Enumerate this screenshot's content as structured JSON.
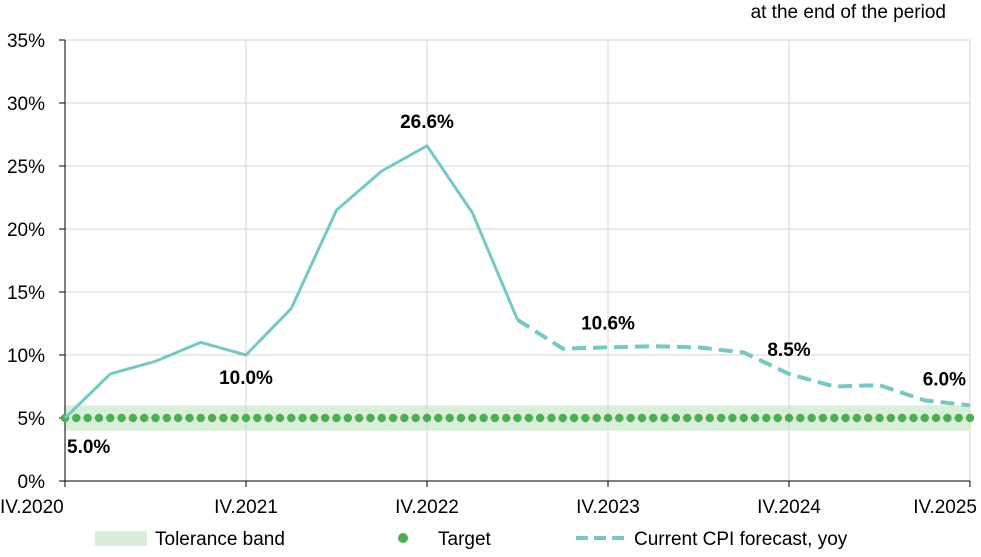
{
  "header_note": "at the end of the period",
  "legend": {
    "tolerance_band": "Tolerance band",
    "target": "Target",
    "forecast": "Current CPI forecast, yoy"
  },
  "colors": {
    "line": "#74c9c6",
    "target_dots": "#4caf50",
    "band": "#d9efd9",
    "grid": "#d4d4d4",
    "axis": "#000000"
  },
  "chart_data": {
    "type": "line",
    "y_axis": {
      "ylim": [
        0,
        35
      ],
      "ticks": [
        0,
        5,
        10,
        15,
        20,
        25,
        30,
        35
      ],
      "tick_labels": [
        "0%",
        "5%",
        "10%",
        "15%",
        "20%",
        "25%",
        "30%",
        "35%"
      ]
    },
    "x_axis": {
      "range": [
        "IV.2020",
        "IV.2025"
      ],
      "ticks": [
        0,
        4,
        8,
        12,
        16,
        20
      ],
      "tick_labels": [
        "IV.2020",
        "IV.2021",
        "IV.2022",
        "IV.2023",
        "IV.2024",
        "IV.2025"
      ]
    },
    "tolerance_band": {
      "low": 4,
      "high": 6
    },
    "target": {
      "value": 5,
      "points_per_quarter": 4
    },
    "series": [
      {
        "name": "Current CPI forecast, yoy",
        "style": "solid",
        "x": [
          0,
          1,
          2,
          3,
          4,
          5,
          6,
          7,
          8,
          9,
          10
        ],
        "y": [
          5.0,
          8.5,
          9.5,
          11.0,
          10.0,
          13.7,
          21.5,
          24.6,
          26.6,
          21.3,
          12.8
        ]
      },
      {
        "name": "Current CPI forecast, yoy",
        "style": "dashed",
        "x": [
          10,
          11,
          12,
          13,
          14,
          15,
          16,
          17,
          18,
          19,
          20
        ],
        "y": [
          12.8,
          10.5,
          10.6,
          10.7,
          10.6,
          10.2,
          8.5,
          7.5,
          7.6,
          6.4,
          6.0
        ]
      }
    ],
    "annotations": [
      {
        "text": "5.0%",
        "x": 0,
        "y": 5.0,
        "pos": "below-right"
      },
      {
        "text": "10.0%",
        "x": 4,
        "y": 10.0,
        "pos": "below"
      },
      {
        "text": "26.6%",
        "x": 8,
        "y": 26.6,
        "pos": "above"
      },
      {
        "text": "10.6%",
        "x": 12,
        "y": 10.6,
        "pos": "above"
      },
      {
        "text": "8.5%",
        "x": 16,
        "y": 8.5,
        "pos": "above"
      },
      {
        "text": "6.0%",
        "x": 20,
        "y": 6.0,
        "pos": "above-left"
      }
    ]
  }
}
